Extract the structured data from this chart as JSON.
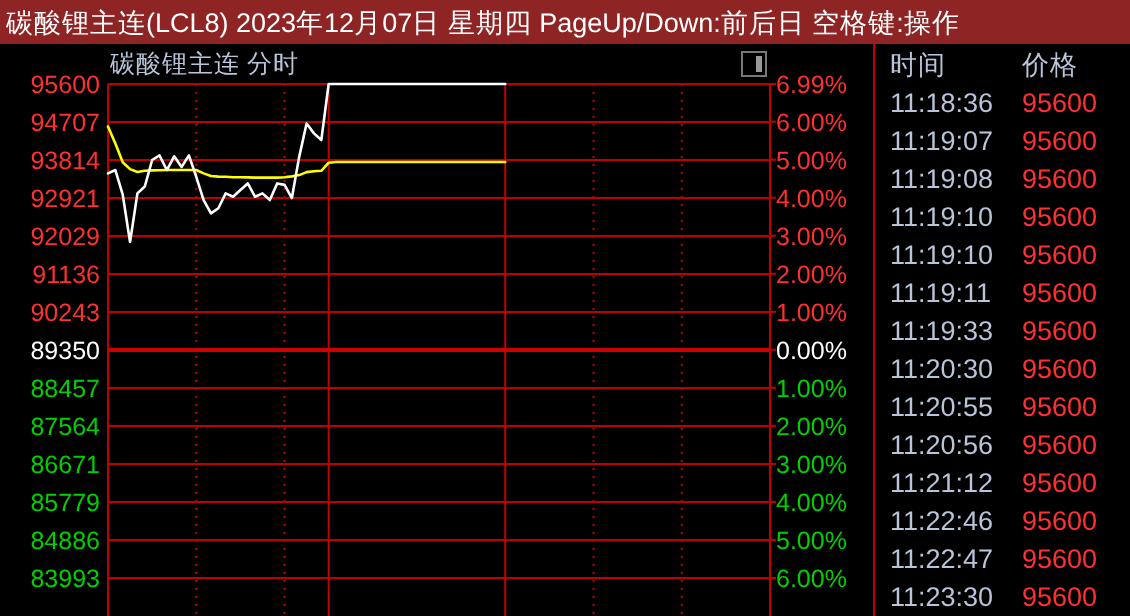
{
  "chart_data": {
    "type": "line",
    "title": "碳酸锂主连(LCL8) 2023年12月07日 星期四 PageUp/Down:前后日 空格键:操作",
    "subtitle": "碳酸锂主连   分时",
    "categories": [
      null,
      null,
      null,
      null,
      null,
      null,
      null,
      null,
      null,
      null,
      null,
      null,
      null,
      null,
      null,
      null,
      null,
      null,
      null,
      null,
      null,
      null,
      null,
      null,
      null,
      null,
      null,
      null,
      null,
      null,
      null,
      null,
      null,
      null,
      null,
      null,
      null,
      null,
      null,
      null,
      null,
      null,
      null,
      null,
      null,
      null,
      null,
      null,
      null,
      null,
      null,
      null,
      null,
      null,
      null,
      null,
      null,
      null,
      null,
      null,
      null,
      null,
      null,
      null,
      null,
      null,
      null,
      null,
      null,
      null,
      null,
      null,
      null,
      null,
      null,
      null,
      null,
      null,
      null,
      null,
      null,
      null,
      null,
      null,
      null,
      null,
      null,
      null,
      null,
      null,
      null
    ],
    "ylim": [
      83100,
      95600
    ],
    "yticks": [
      95600,
      94707,
      93814,
      92921,
      92029,
      91136,
      90243,
      89350,
      88457,
      87564,
      86671,
      85779,
      84886,
      83993
    ],
    "y2lim": [
      -7,
      6.99
    ],
    "y2ticks": [
      {
        "value": 6.99,
        "label": "6.99%"
      },
      {
        "value": 6,
        "label": "6.00%"
      },
      {
        "value": 5,
        "label": "5.00%"
      },
      {
        "value": 4,
        "label": "4.00%"
      },
      {
        "value": 3,
        "label": "3.00%"
      },
      {
        "value": 2,
        "label": "2.00%"
      },
      {
        "value": 1,
        "label": "1.00%"
      },
      {
        "value": 0,
        "label": "0.00%"
      },
      {
        "value": -1,
        "label": "1.00%"
      },
      {
        "value": -2,
        "label": "2.00%"
      },
      {
        "value": -3,
        "label": "3.00%"
      },
      {
        "value": -4,
        "label": "4.00%"
      },
      {
        "value": -5,
        "label": "5.00%"
      },
      {
        "value": -6,
        "label": "6.00%"
      }
    ],
    "grid": true,
    "line_style": "solid",
    "series": [
      {
        "color": "#ffffff",
        "values": [
          93500,
          93579,
          93000,
          91887,
          93030,
          93190,
          93814,
          93922,
          93579,
          93900,
          93650,
          93922,
          93420,
          92874,
          92560,
          92680,
          93030,
          92950,
          93110,
          93264,
          92950,
          93030,
          92874,
          93264,
          93230,
          92921,
          93894,
          94674,
          94440,
          94284,
          95600,
          95600,
          95600,
          95600,
          95600,
          95600,
          95600,
          95600,
          95600,
          95600,
          95600,
          95600,
          95600,
          95600,
          95600,
          95600,
          95600,
          95600,
          95600,
          95600,
          95600,
          95600,
          95600,
          95600,
          95600,
          null,
          null,
          null,
          null,
          null,
          null,
          null,
          null,
          null,
          null,
          null,
          null,
          null,
          null,
          null,
          null,
          null,
          null,
          null,
          null,
          null,
          null,
          null,
          null,
          null,
          null,
          null,
          null,
          null,
          null,
          null,
          null,
          null,
          null,
          null,
          null
        ]
      },
      {
        "color": "#ffff00",
        "values": [
          94600,
          94200,
          93760,
          93600,
          93532,
          93560,
          93570,
          93575,
          93579,
          93579,
          93579,
          93579,
          93579,
          93500,
          93440,
          93424,
          93420,
          93410,
          93410,
          93405,
          93400,
          93400,
          93400,
          93400,
          93410,
          93430,
          93460,
          93530,
          93550,
          93560,
          93750,
          93767,
          93767,
          93767,
          93767,
          93767,
          93767,
          93767,
          93767,
          93767,
          93767,
          93767,
          93767,
          93767,
          93767,
          93767,
          93767,
          93767,
          93767,
          93767,
          93767,
          93767,
          93767,
          93767,
          93767,
          null,
          null,
          null,
          null,
          null,
          null,
          null,
          null,
          null,
          null,
          null,
          null,
          null,
          null,
          null,
          null,
          null,
          null,
          null,
          null,
          null,
          null,
          null,
          null,
          null,
          null,
          null,
          null,
          null,
          null,
          null,
          null,
          null,
          null,
          null,
          null
        ]
      }
    ],
    "ref_lines": [
      {
        "axis": "y",
        "value": 89350,
        "color": "#cc0000"
      }
    ],
    "annotations": [
      "时间",
      "价格",
      "11:18:36",
      "95600",
      "11:19:07",
      "95600",
      "11:19:08",
      "95600",
      "11:19:10",
      "95600",
      "11:19:10",
      "95600",
      "11:19:11",
      "95600",
      "11:19:33",
      "95600",
      "11:20:30",
      "95600",
      "11:20:55",
      "95600",
      "11:20:56",
      "95600",
      "11:21:12",
      "95600",
      "11:22:46",
      "95600",
      "11:22:47",
      "95600",
      "11:23:30",
      "95600"
    ]
  }
}
